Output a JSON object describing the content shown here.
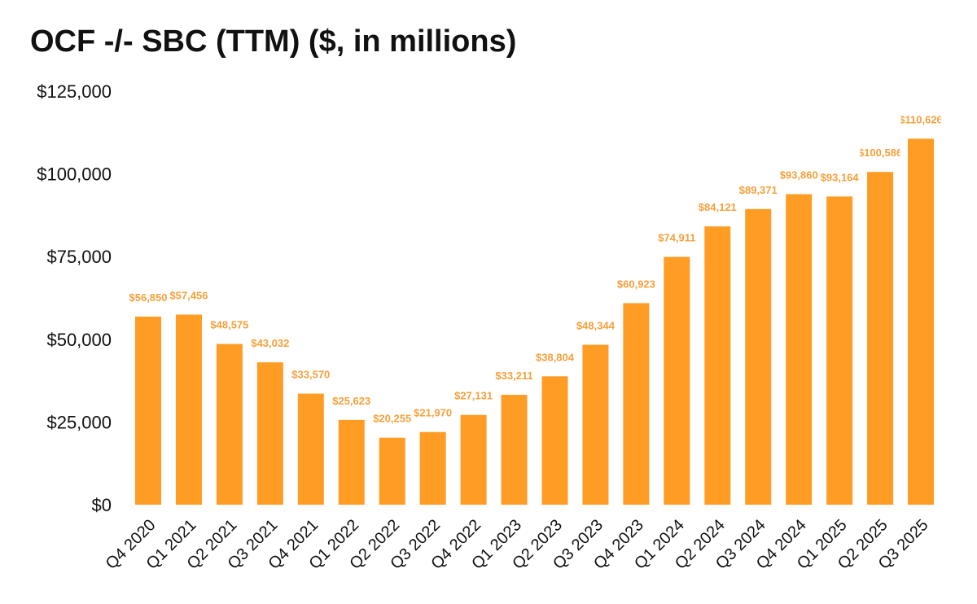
{
  "chart_data": {
    "type": "bar",
    "title": "OCF -/- SBC (TTM) ($, in millions)",
    "xlabel": "",
    "ylabel": "",
    "ylim": [
      0,
      125000
    ],
    "yticks": [
      0,
      25000,
      50000,
      75000,
      100000,
      125000
    ],
    "ytick_labels": [
      "$0",
      "$25,000",
      "$50,000",
      "$75,000",
      "$100,000",
      "$125,000"
    ],
    "grid": false,
    "legend": "none",
    "bar_color": "#FF9C24",
    "label_color": "#F5A03C",
    "categories": [
      "Q4 2020",
      "Q1 2021",
      "Q2 2021",
      "Q3 2021",
      "Q4 2021",
      "Q1 2022",
      "Q2 2022",
      "Q3 2022",
      "Q4 2022",
      "Q1 2023",
      "Q2 2023",
      "Q3 2023",
      "Q4 2023",
      "Q1 2024",
      "Q2 2024",
      "Q3 2024",
      "Q4 2024",
      "Q1 2025",
      "Q2 2025",
      "Q3 2025"
    ],
    "values": [
      56850,
      57456,
      48575,
      43032,
      33570,
      25623,
      20255,
      21970,
      27131,
      33211,
      38804,
      48344,
      60923,
      74911,
      84121,
      89371,
      93860,
      93164,
      100586,
      110626
    ],
    "data_labels": [
      "$56,850",
      "$57,456",
      "$48,575",
      "$43,032",
      "$33,570",
      "$25,623",
      "$20,255",
      "$21,970",
      "$27,131",
      "$33,211",
      "$38,804",
      "$48,344",
      "$60,923",
      "$74,911",
      "$84,121",
      "$89,371",
      "$93,860",
      "$93,164",
      "$100,586",
      "$110,626"
    ]
  }
}
